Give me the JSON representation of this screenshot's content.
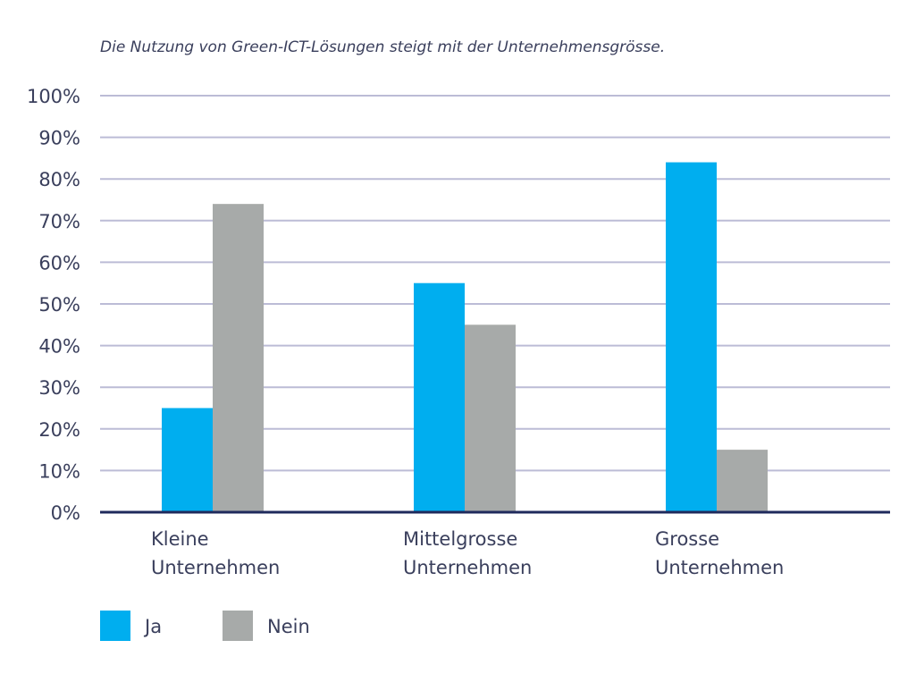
{
  "chart_data": {
    "type": "bar",
    "subtitle": "Die Nutzung von Green-ICT-Lösungen steigt mit der Unternehmensgrösse.",
    "categories": [
      [
        "Kleine",
        "Unternehmen"
      ],
      [
        "Mittelgrosse",
        "Unternehmen"
      ],
      [
        "Grosse",
        "Unternehmen"
      ]
    ],
    "series": [
      {
        "name": "Ja",
        "color": "#00aeef",
        "values": [
          25,
          55,
          84
        ]
      },
      {
        "name": "Nein",
        "color": "#a7aaa9",
        "values": [
          74,
          45,
          15
        ]
      }
    ],
    "ylim": [
      0,
      100
    ],
    "yticks": [
      0,
      10,
      20,
      30,
      40,
      50,
      60,
      70,
      80,
      90,
      100
    ],
    "ytick_labels": [
      "0%",
      "10%",
      "20%",
      "30%",
      "40%",
      "50%",
      "60%",
      "70%",
      "80%",
      "90%",
      "100%"
    ],
    "grid": true,
    "legend_position": "bottom-left",
    "colors": {
      "grid": "#bcbcd6",
      "axis": "#1f2a5c",
      "text": "#3a3f5c"
    }
  }
}
